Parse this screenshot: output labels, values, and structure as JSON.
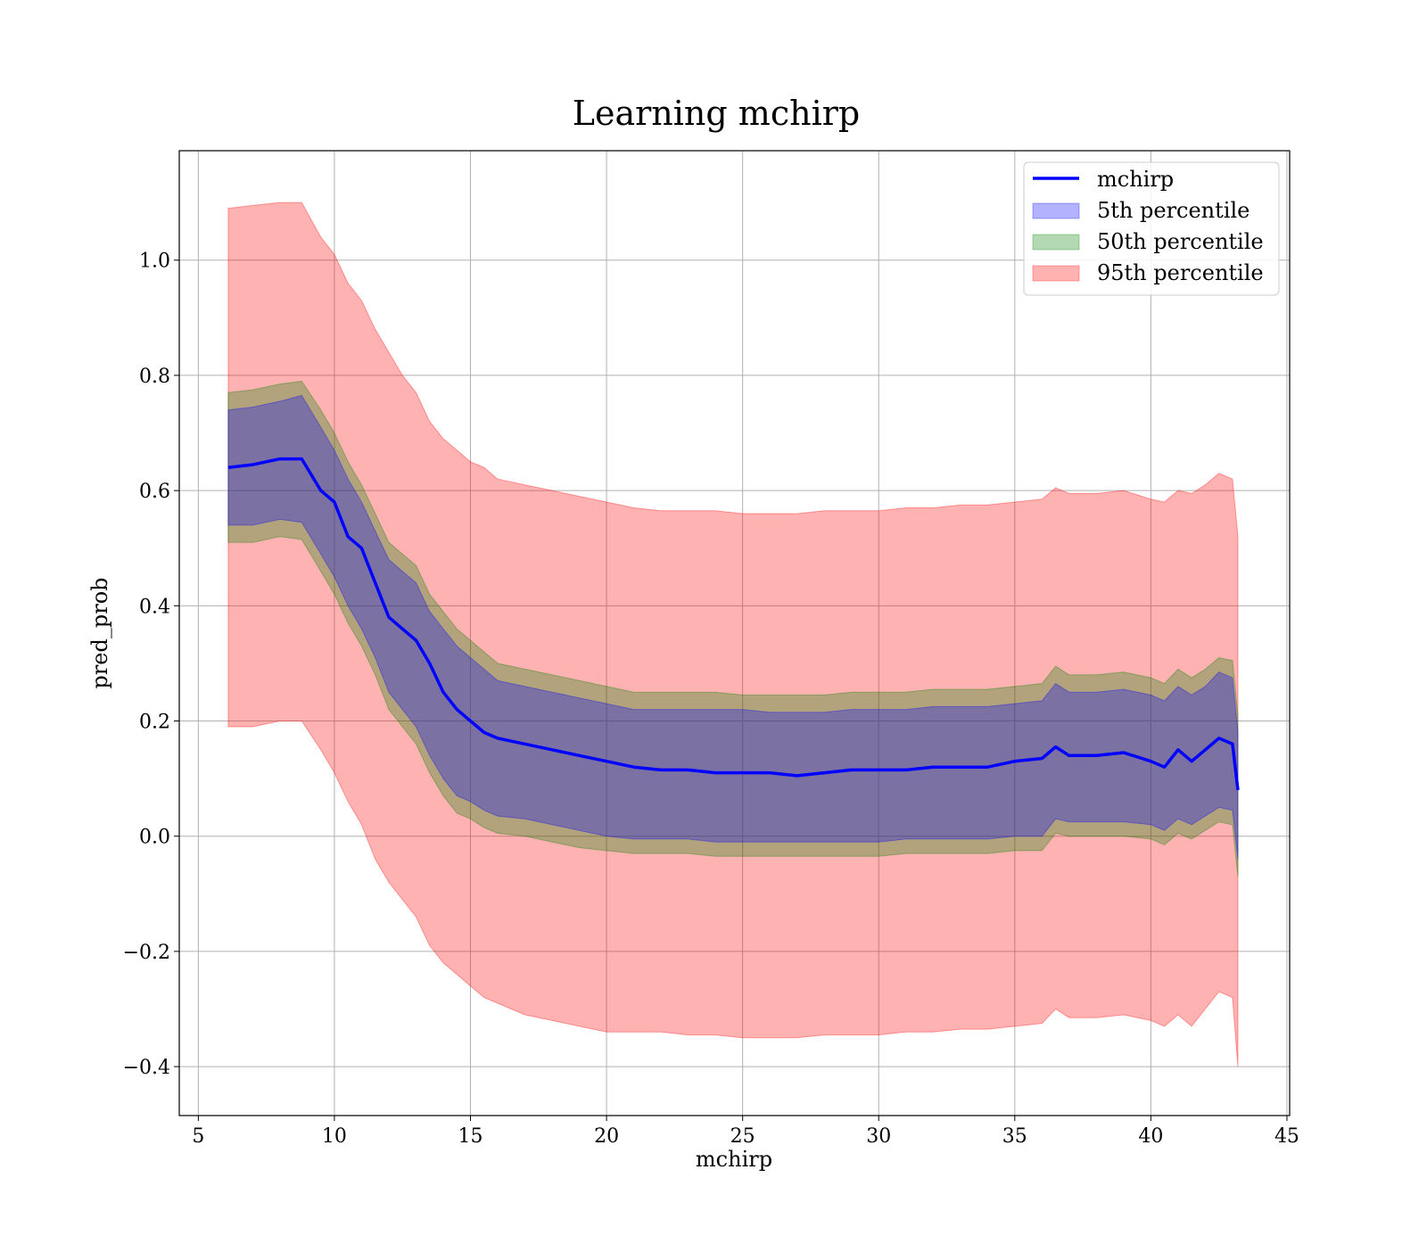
{
  "chart_data": {
    "type": "area",
    "title": "Learning mchirp",
    "xlabel": "mchirp",
    "ylabel": "pred_prob",
    "xlim": [
      4.3,
      45.1
    ],
    "ylim": [
      -0.485,
      1.19
    ],
    "xticks": [
      5,
      10,
      15,
      20,
      25,
      30,
      35,
      40,
      45
    ],
    "xtick_labels": [
      "5",
      "10",
      "15",
      "20",
      "25",
      "30",
      "35",
      "40",
      "45"
    ],
    "yticks": [
      -0.4,
      -0.2,
      0.0,
      0.2,
      0.4,
      0.6,
      0.8,
      1.0
    ],
    "ytick_labels": [
      "−0.4",
      "−0.2",
      "0.0",
      "0.2",
      "0.4",
      "0.6",
      "0.8",
      "1.0"
    ],
    "grid": true,
    "legend_position": "top-right",
    "colors": {
      "line": "#0000ff",
      "band_5": "#0000ff",
      "band_50": "#008000",
      "band_95": "#ff0000"
    },
    "x": [
      6.1,
      7.0,
      8.0,
      8.8,
      9.5,
      10.0,
      10.5,
      11.0,
      11.5,
      12.0,
      12.5,
      13.0,
      13.5,
      14.0,
      14.5,
      15.0,
      15.5,
      16.0,
      17.0,
      18.0,
      19.0,
      20.0,
      21.0,
      22.0,
      23.0,
      24.0,
      25.0,
      26.0,
      27.0,
      28.0,
      29.0,
      30.0,
      31.0,
      32.0,
      33.0,
      34.0,
      35.0,
      36.0,
      36.5,
      37.0,
      38.0,
      39.0,
      40.0,
      40.5,
      41.0,
      41.5,
      42.0,
      42.5,
      43.0,
      43.2
    ],
    "series": [
      {
        "name": "mchirp",
        "kind": "line",
        "values": [
          0.64,
          0.645,
          0.655,
          0.655,
          0.6,
          0.58,
          0.52,
          0.5,
          0.44,
          0.38,
          0.36,
          0.34,
          0.3,
          0.25,
          0.22,
          0.2,
          0.18,
          0.17,
          0.16,
          0.15,
          0.14,
          0.13,
          0.12,
          0.115,
          0.115,
          0.11,
          0.11,
          0.11,
          0.105,
          0.11,
          0.115,
          0.115,
          0.115,
          0.12,
          0.12,
          0.12,
          0.13,
          0.135,
          0.155,
          0.14,
          0.14,
          0.145,
          0.13,
          0.12,
          0.15,
          0.13,
          0.15,
          0.17,
          0.16,
          0.08
        ]
      },
      {
        "name": "5th percentile",
        "kind": "band",
        "lower": [
          0.54,
          0.54,
          0.55,
          0.545,
          0.49,
          0.45,
          0.4,
          0.36,
          0.31,
          0.25,
          0.22,
          0.19,
          0.14,
          0.1,
          0.07,
          0.06,
          0.045,
          0.035,
          0.03,
          0.02,
          0.01,
          0.0,
          -0.005,
          -0.005,
          -0.005,
          -0.01,
          -0.01,
          -0.01,
          -0.01,
          -0.01,
          -0.01,
          -0.01,
          -0.005,
          -0.005,
          -0.005,
          -0.005,
          0.0,
          0.0,
          0.03,
          0.025,
          0.025,
          0.025,
          0.02,
          0.01,
          0.03,
          0.02,
          0.035,
          0.05,
          0.045,
          -0.04
        ],
        "upper": [
          0.74,
          0.745,
          0.755,
          0.765,
          0.71,
          0.67,
          0.62,
          0.58,
          0.53,
          0.48,
          0.46,
          0.44,
          0.39,
          0.36,
          0.33,
          0.31,
          0.29,
          0.27,
          0.26,
          0.25,
          0.24,
          0.23,
          0.22,
          0.22,
          0.22,
          0.22,
          0.22,
          0.215,
          0.215,
          0.215,
          0.22,
          0.22,
          0.22,
          0.225,
          0.225,
          0.225,
          0.23,
          0.235,
          0.265,
          0.25,
          0.25,
          0.255,
          0.245,
          0.235,
          0.26,
          0.245,
          0.26,
          0.285,
          0.275,
          0.18
        ]
      },
      {
        "name": "50th percentile",
        "kind": "band",
        "lower": [
          0.51,
          0.51,
          0.52,
          0.515,
          0.46,
          0.42,
          0.37,
          0.33,
          0.28,
          0.22,
          0.19,
          0.16,
          0.11,
          0.07,
          0.04,
          0.03,
          0.015,
          0.005,
          0.0,
          -0.01,
          -0.02,
          -0.025,
          -0.03,
          -0.03,
          -0.03,
          -0.035,
          -0.035,
          -0.035,
          -0.035,
          -0.035,
          -0.035,
          -0.035,
          -0.03,
          -0.03,
          -0.03,
          -0.03,
          -0.025,
          -0.025,
          0.005,
          0.0,
          0.0,
          0.0,
          -0.005,
          -0.015,
          0.005,
          -0.005,
          0.01,
          0.025,
          0.02,
          -0.07
        ],
        "upper": [
          0.77,
          0.775,
          0.785,
          0.79,
          0.74,
          0.7,
          0.65,
          0.61,
          0.56,
          0.51,
          0.49,
          0.47,
          0.42,
          0.39,
          0.36,
          0.34,
          0.32,
          0.3,
          0.29,
          0.28,
          0.27,
          0.26,
          0.25,
          0.25,
          0.25,
          0.25,
          0.245,
          0.245,
          0.245,
          0.245,
          0.25,
          0.25,
          0.25,
          0.255,
          0.255,
          0.255,
          0.26,
          0.265,
          0.295,
          0.28,
          0.28,
          0.285,
          0.275,
          0.265,
          0.29,
          0.275,
          0.29,
          0.31,
          0.305,
          0.21
        ]
      },
      {
        "name": "95th percentile",
        "kind": "band",
        "lower": [
          0.19,
          0.19,
          0.2,
          0.2,
          0.15,
          0.11,
          0.06,
          0.02,
          -0.04,
          -0.08,
          -0.11,
          -0.14,
          -0.19,
          -0.22,
          -0.24,
          -0.26,
          -0.28,
          -0.29,
          -0.31,
          -0.32,
          -0.33,
          -0.34,
          -0.34,
          -0.34,
          -0.345,
          -0.345,
          -0.35,
          -0.35,
          -0.35,
          -0.345,
          -0.345,
          -0.345,
          -0.34,
          -0.34,
          -0.335,
          -0.335,
          -0.33,
          -0.325,
          -0.3,
          -0.315,
          -0.315,
          -0.31,
          -0.32,
          -0.33,
          -0.31,
          -0.33,
          -0.3,
          -0.27,
          -0.28,
          -0.4
        ],
        "upper": [
          1.09,
          1.095,
          1.1,
          1.1,
          1.04,
          1.01,
          0.96,
          0.93,
          0.88,
          0.84,
          0.8,
          0.77,
          0.72,
          0.69,
          0.67,
          0.65,
          0.64,
          0.62,
          0.61,
          0.6,
          0.59,
          0.58,
          0.57,
          0.565,
          0.565,
          0.565,
          0.56,
          0.56,
          0.56,
          0.565,
          0.565,
          0.565,
          0.57,
          0.57,
          0.575,
          0.575,
          0.58,
          0.585,
          0.605,
          0.595,
          0.595,
          0.6,
          0.585,
          0.58,
          0.6,
          0.595,
          0.61,
          0.63,
          0.62,
          0.52
        ]
      }
    ]
  }
}
